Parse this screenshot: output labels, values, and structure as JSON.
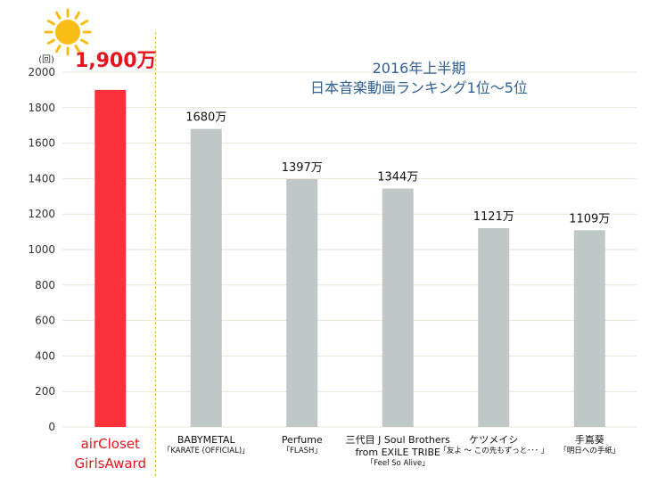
{
  "chart_data": {
    "type": "bar",
    "title_lines": [
      "2016年上半期",
      "日本音楽動画ランキング1位〜5位"
    ],
    "y_unit": "(回)",
    "ylim": [
      0,
      2000
    ],
    "yticks": [
      0,
      200,
      400,
      600,
      800,
      1000,
      1200,
      1400,
      1600,
      1800,
      2000
    ],
    "grid": true,
    "values": [
      1900,
      1680,
      1397,
      1344,
      1121,
      1109
    ],
    "value_labels": [
      "1,900万",
      "1680万",
      "1397万",
      "1344万",
      "1121万",
      "1109万"
    ],
    "category_lines": [
      [
        "airCloset",
        "GirlsAward"
      ],
      [
        "BABYMETAL"
      ],
      [
        "Perfume"
      ],
      [
        "三代目 J Soul Brothers",
        "from EXILE TRIBE"
      ],
      [
        "ケツメイシ"
      ],
      [
        "手嶌葵"
      ]
    ],
    "song_lines": [
      [],
      [
        "「KARATE (OFFICIAL)」"
      ],
      [
        "「FLASH」"
      ],
      [
        "「Feel So Alive」"
      ],
      [
        "「友よ 〜 この先もずっと･･･ 」"
      ],
      [
        "「明日への手紙」"
      ]
    ],
    "highlight_index": 0,
    "colors": {
      "highlight_bar": "#fb323c",
      "bar": "#bfc8c6",
      "grid": "#e7e3d7",
      "title": "#2f5f93",
      "highlight_text": "#e8141d",
      "divider": "#e2c54a",
      "sun": "#f7bd16"
    },
    "icons": {
      "sun": "sun-icon"
    }
  }
}
